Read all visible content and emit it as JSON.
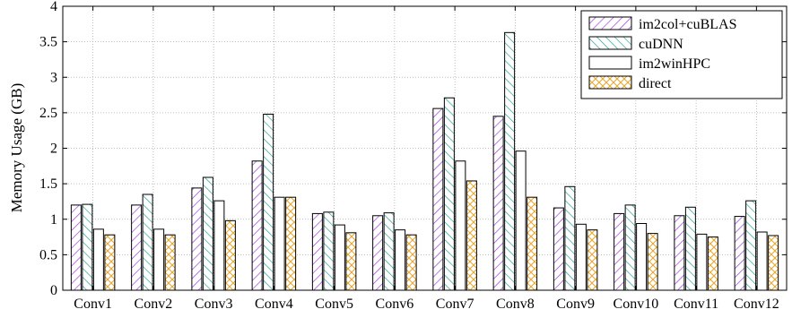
{
  "chart_data": {
    "type": "bar",
    "title": "",
    "xlabel": "",
    "ylabel": "Memory Usage (GB)",
    "ylim": [
      0,
      4
    ],
    "yticks": [
      0,
      0.5,
      1,
      1.5,
      2,
      2.5,
      3,
      3.5,
      4
    ],
    "ytick_labels": [
      "0",
      "0.5",
      "1",
      "1.5",
      "2",
      "2.5",
      "3",
      "3.5",
      "4"
    ],
    "grid": "dotted",
    "legend_position": "top-right",
    "categories": [
      "Conv1",
      "Conv2",
      "Conv3",
      "Conv4",
      "Conv5",
      "Conv6",
      "Conv7",
      "Conv8",
      "Conv9",
      "Conv10",
      "Conv11",
      "Conv12"
    ],
    "series": [
      {
        "name": "im2col+cuBLAS",
        "pattern": "diagonal-right",
        "color": "#9b30d9",
        "values": [
          1.2,
          1.2,
          1.44,
          1.82,
          1.08,
          1.05,
          2.56,
          2.45,
          1.16,
          1.08,
          1.05,
          1.04
        ]
      },
      {
        "name": "cuDNN",
        "pattern": "diagonal-left",
        "color": "#1a9e8e",
        "values": [
          1.21,
          1.35,
          1.59,
          2.48,
          1.1,
          1.09,
          2.71,
          3.63,
          1.46,
          1.2,
          1.17,
          1.26
        ]
      },
      {
        "name": "im2winHPC",
        "pattern": "solid",
        "color": "#000000",
        "values": [
          0.86,
          0.86,
          1.26,
          1.31,
          0.92,
          0.85,
          1.82,
          1.96,
          0.93,
          0.94,
          0.79,
          0.82
        ]
      },
      {
        "name": "direct",
        "pattern": "crosshatch",
        "color": "#e8a52a",
        "values": [
          0.78,
          0.78,
          0.98,
          1.31,
          0.81,
          0.78,
          1.54,
          1.31,
          0.85,
          0.8,
          0.75,
          0.77
        ]
      }
    ]
  }
}
